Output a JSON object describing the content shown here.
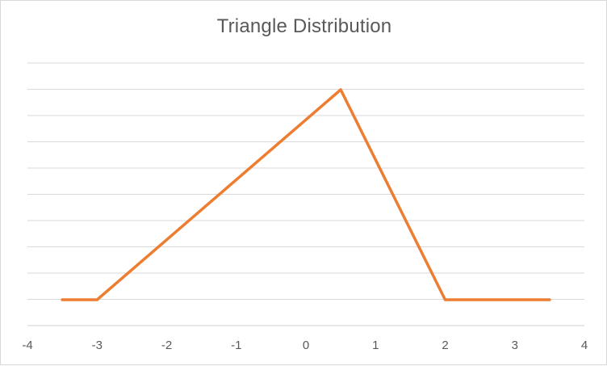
{
  "chart_data": {
    "type": "line",
    "title": "Triangle Distribution",
    "xlabel": "",
    "ylabel": "",
    "xlim": [
      -4,
      4
    ],
    "ylim": [
      0,
      0.4
    ],
    "x_ticks": [
      -4,
      -3,
      -2,
      -1,
      0,
      1,
      2,
      3,
      4
    ],
    "grid": true,
    "legend": "none",
    "series": [
      {
        "color": "#ED7D31",
        "x": [
          -3.5,
          -3.0,
          0.5,
          2.0,
          3.5
        ],
        "y": [
          0,
          0,
          0.4,
          0,
          0
        ]
      }
    ]
  },
  "colors": {
    "line": "#ED7D31",
    "gridline": "#d9d9d9",
    "text": "#595959"
  }
}
